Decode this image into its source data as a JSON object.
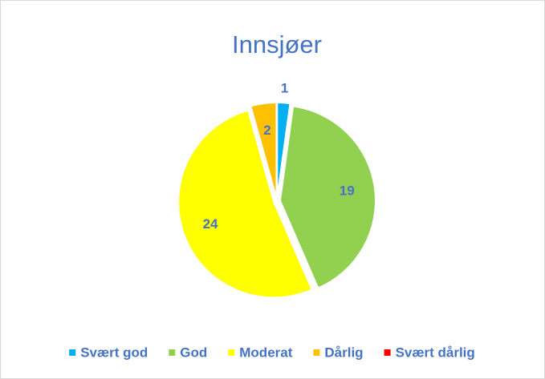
{
  "chart_data": {
    "type": "pie",
    "title": "Innsjøer",
    "categories": [
      "Svært god",
      "God",
      "Moderat",
      "Dårlig",
      "Svært dårlig"
    ],
    "values": [
      1,
      19,
      24,
      2,
      0
    ],
    "colors": [
      "#00b0f0",
      "#92d050",
      "#ffff00",
      "#ffc000",
      "#ff0000"
    ],
    "legend": "bottom"
  }
}
